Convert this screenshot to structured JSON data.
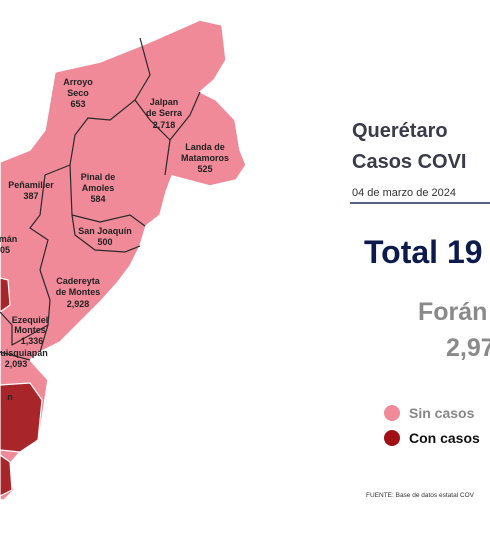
{
  "map": {
    "municipalities": [
      {
        "name": [
          "Arroyo",
          "Seco"
        ],
        "cases": "653"
      },
      {
        "name": [
          "Jalpan",
          "de Serra"
        ],
        "cases": "2,718"
      },
      {
        "name": [
          "Landa de",
          "Matamoros"
        ],
        "cases": "525"
      },
      {
        "name": [
          "Pinal de",
          "Amoles"
        ],
        "cases": "584"
      },
      {
        "name": [
          "Peñamiller"
        ],
        "cases": "387"
      },
      {
        "name": [
          "mán"
        ],
        "cases": "05"
      },
      {
        "name": [
          "San Joaquín"
        ],
        "cases": "500"
      },
      {
        "name": [
          "Cadereyta",
          "de Montes"
        ],
        "cases": "2,928"
      },
      {
        "name": [
          "Ezequiel",
          "Montes"
        ],
        "cases": "1,336"
      },
      {
        "name": [
          "uisquiapan"
        ],
        "cases": "2,093"
      },
      {
        "name": [
          "n"
        ]
      }
    ]
  },
  "panel": {
    "title": [
      "Querétaro",
      "Casos COVI"
    ],
    "date": "04 de marzo de 2024",
    "total": "Total 19",
    "foreign": [
      "Forán",
      "2,97"
    ],
    "legend": [
      "Sin casos",
      "Con casos"
    ],
    "source": "FUENTE: Base de datos estatal COV"
  }
}
